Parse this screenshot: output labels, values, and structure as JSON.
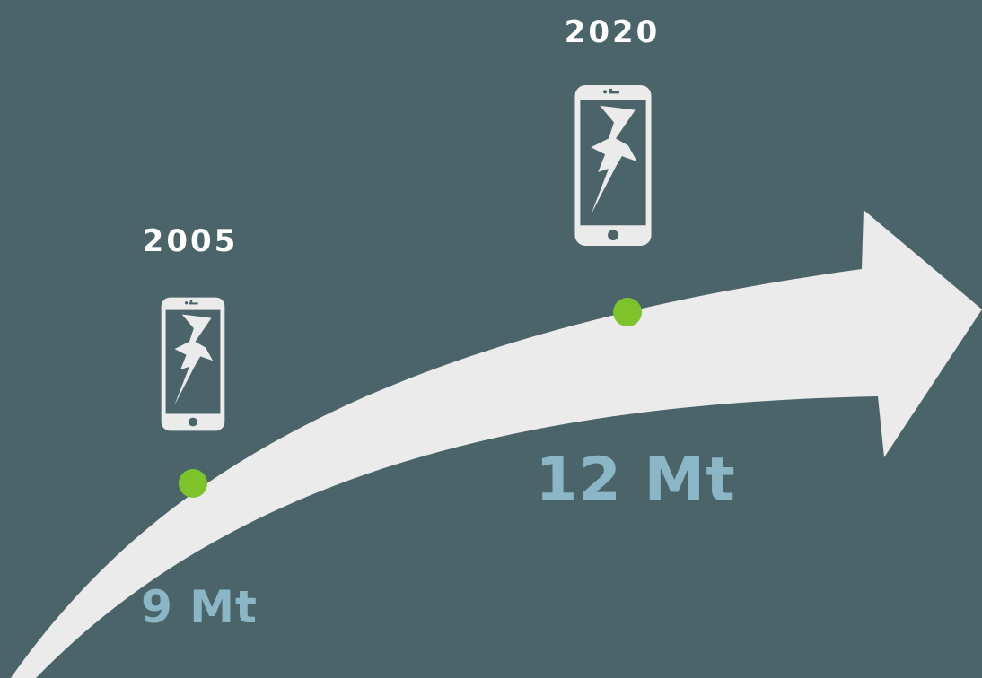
{
  "colors": {
    "background": "#4a6469",
    "arrow": "#ebebeb",
    "marker": "#7dc32a",
    "year_text": "#ffffff",
    "value_text": "#8bb6c6",
    "phone": "#ebebeb"
  },
  "milestones": [
    {
      "year": "2005",
      "value": "9 Mt",
      "icon": "cracked-phone-icon"
    },
    {
      "year": "2020",
      "value": "12 Mt",
      "icon": "cracked-phone-icon"
    }
  ]
}
